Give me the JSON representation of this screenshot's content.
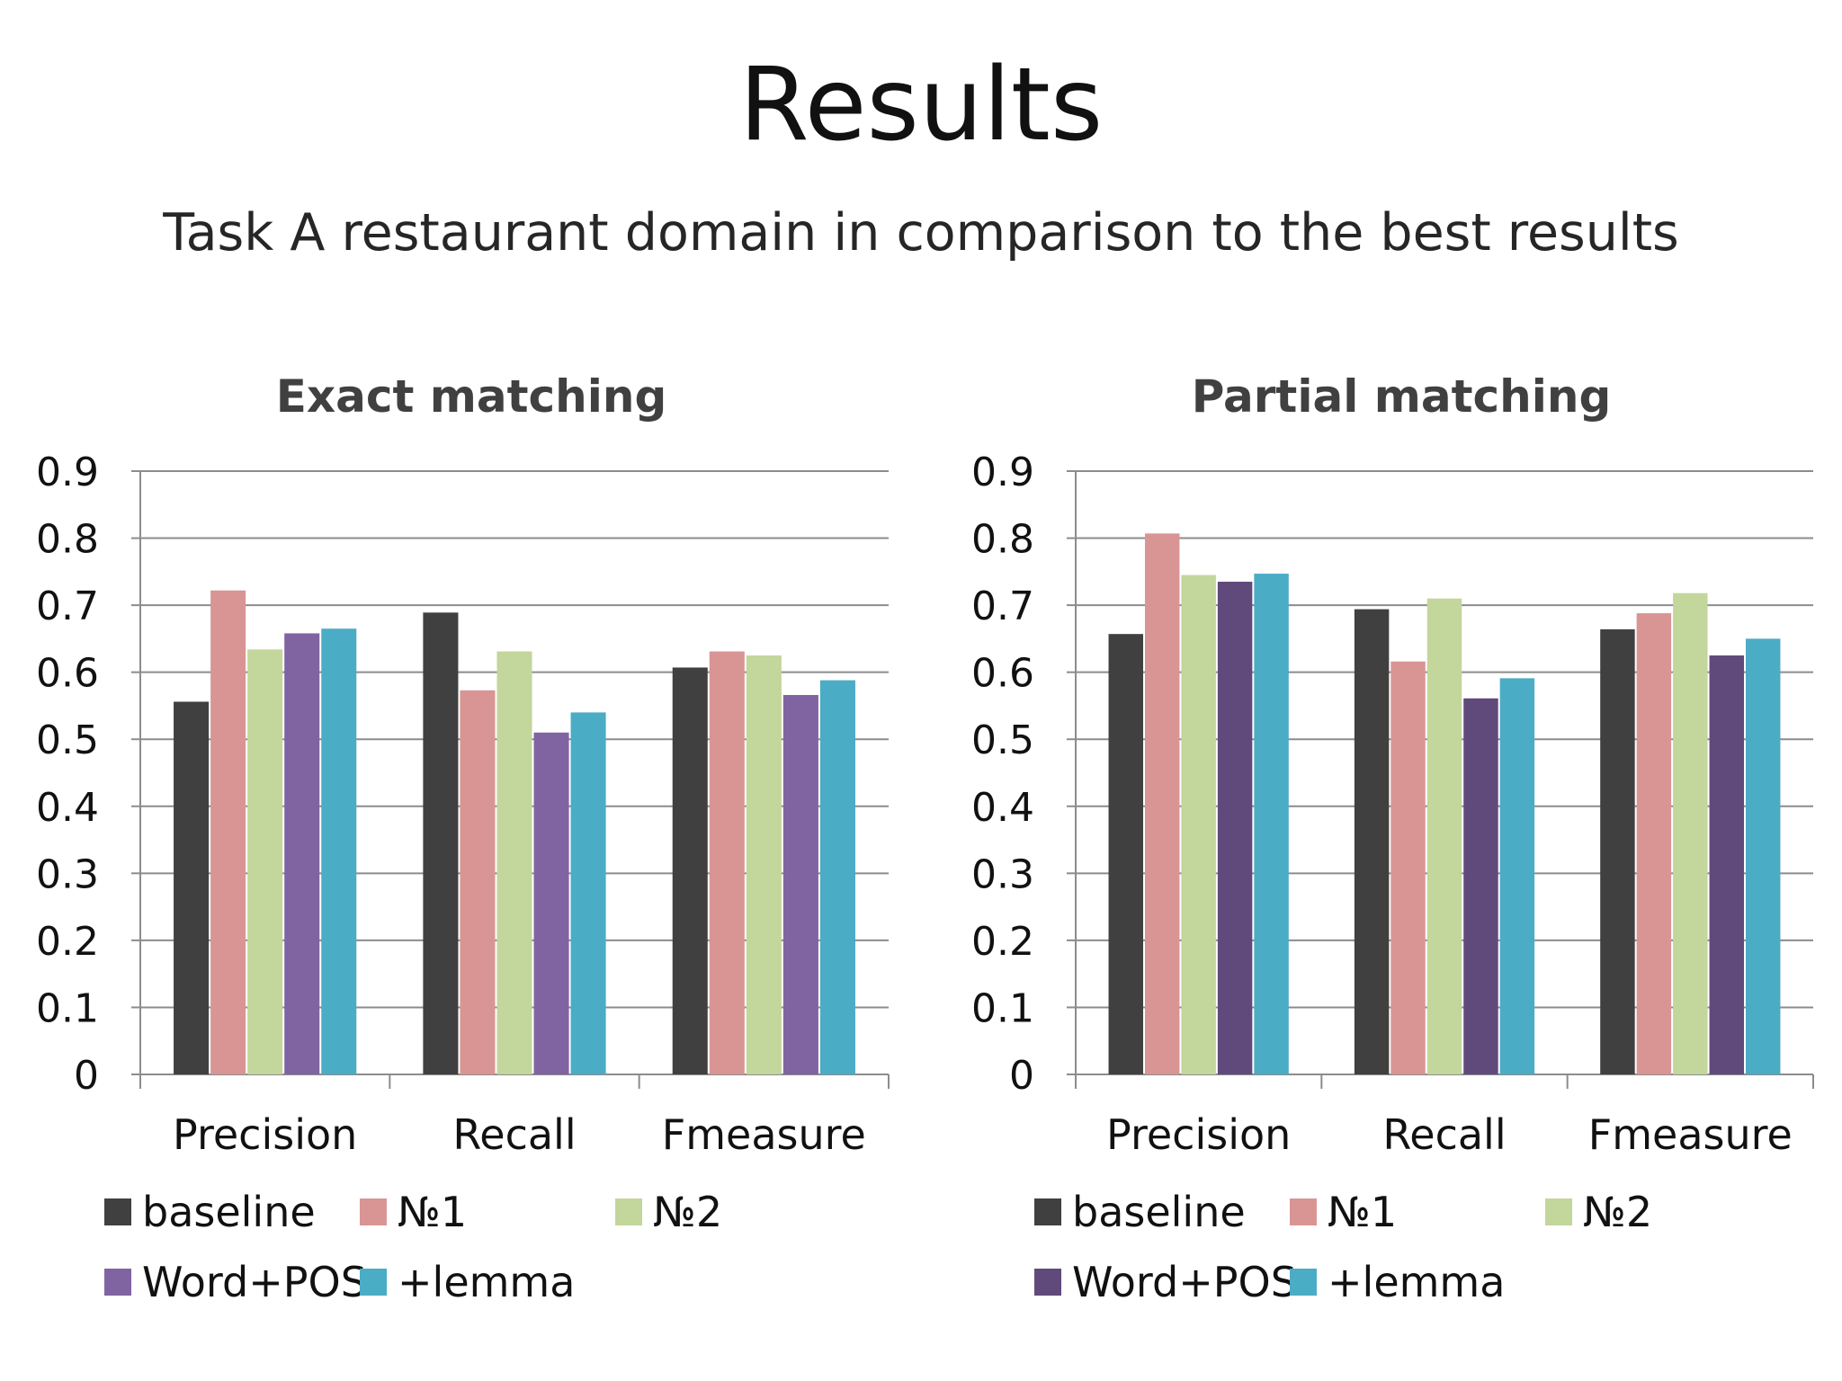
{
  "slide": {
    "title": "Results",
    "subtitle": "Task A restaurant domain in comparison to the best results"
  },
  "chart_data": [
    {
      "type": "bar",
      "title": "Exact matching",
      "categories": [
        "Precision",
        "Recall",
        "Fmeasure"
      ],
      "series": [
        {
          "name": "baseline",
          "color": "#404040",
          "values": [
            0.556,
            0.689,
            0.607
          ]
        },
        {
          "name": "№1",
          "color": "#D99594",
          "values": [
            0.722,
            0.573,
            0.631
          ]
        },
        {
          "name": "№2",
          "color": "#C3D69B",
          "values": [
            0.634,
            0.631,
            0.625
          ]
        },
        {
          "name": "Word+POS",
          "color": "#8064A2",
          "values": [
            0.658,
            0.51,
            0.566
          ]
        },
        {
          "name": "+lemma",
          "color": "#4BACC6",
          "values": [
            0.665,
            0.54,
            0.588
          ]
        }
      ],
      "ylim": [
        0,
        0.9
      ],
      "yticks": [
        "0",
        "0.1",
        "0.2",
        "0.3",
        "0.4",
        "0.5",
        "0.6",
        "0.7",
        "0.8",
        "0.9"
      ],
      "grid": true,
      "legend_position": "bottom"
    },
    {
      "type": "bar",
      "title": "Partial matching",
      "categories": [
        "Precision",
        "Recall",
        "Fmeasure"
      ],
      "series": [
        {
          "name": "baseline",
          "color": "#404040",
          "values": [
            0.657,
            0.694,
            0.664
          ]
        },
        {
          "name": "№1",
          "color": "#D99594",
          "values": [
            0.807,
            0.616,
            0.688
          ]
        },
        {
          "name": "№2",
          "color": "#C3D69B",
          "values": [
            0.745,
            0.71,
            0.718
          ]
        },
        {
          "name": "Word+POS",
          "color": "#604A7B",
          "values": [
            0.735,
            0.561,
            0.625
          ]
        },
        {
          "name": "+lemma",
          "color": "#4BACC6",
          "values": [
            0.747,
            0.591,
            0.65
          ]
        }
      ],
      "ylim": [
        0,
        0.9
      ],
      "yticks": [
        "0",
        "0.1",
        "0.2",
        "0.3",
        "0.4",
        "0.5",
        "0.6",
        "0.7",
        "0.8",
        "0.9"
      ],
      "grid": true,
      "legend_position": "bottom"
    }
  ]
}
